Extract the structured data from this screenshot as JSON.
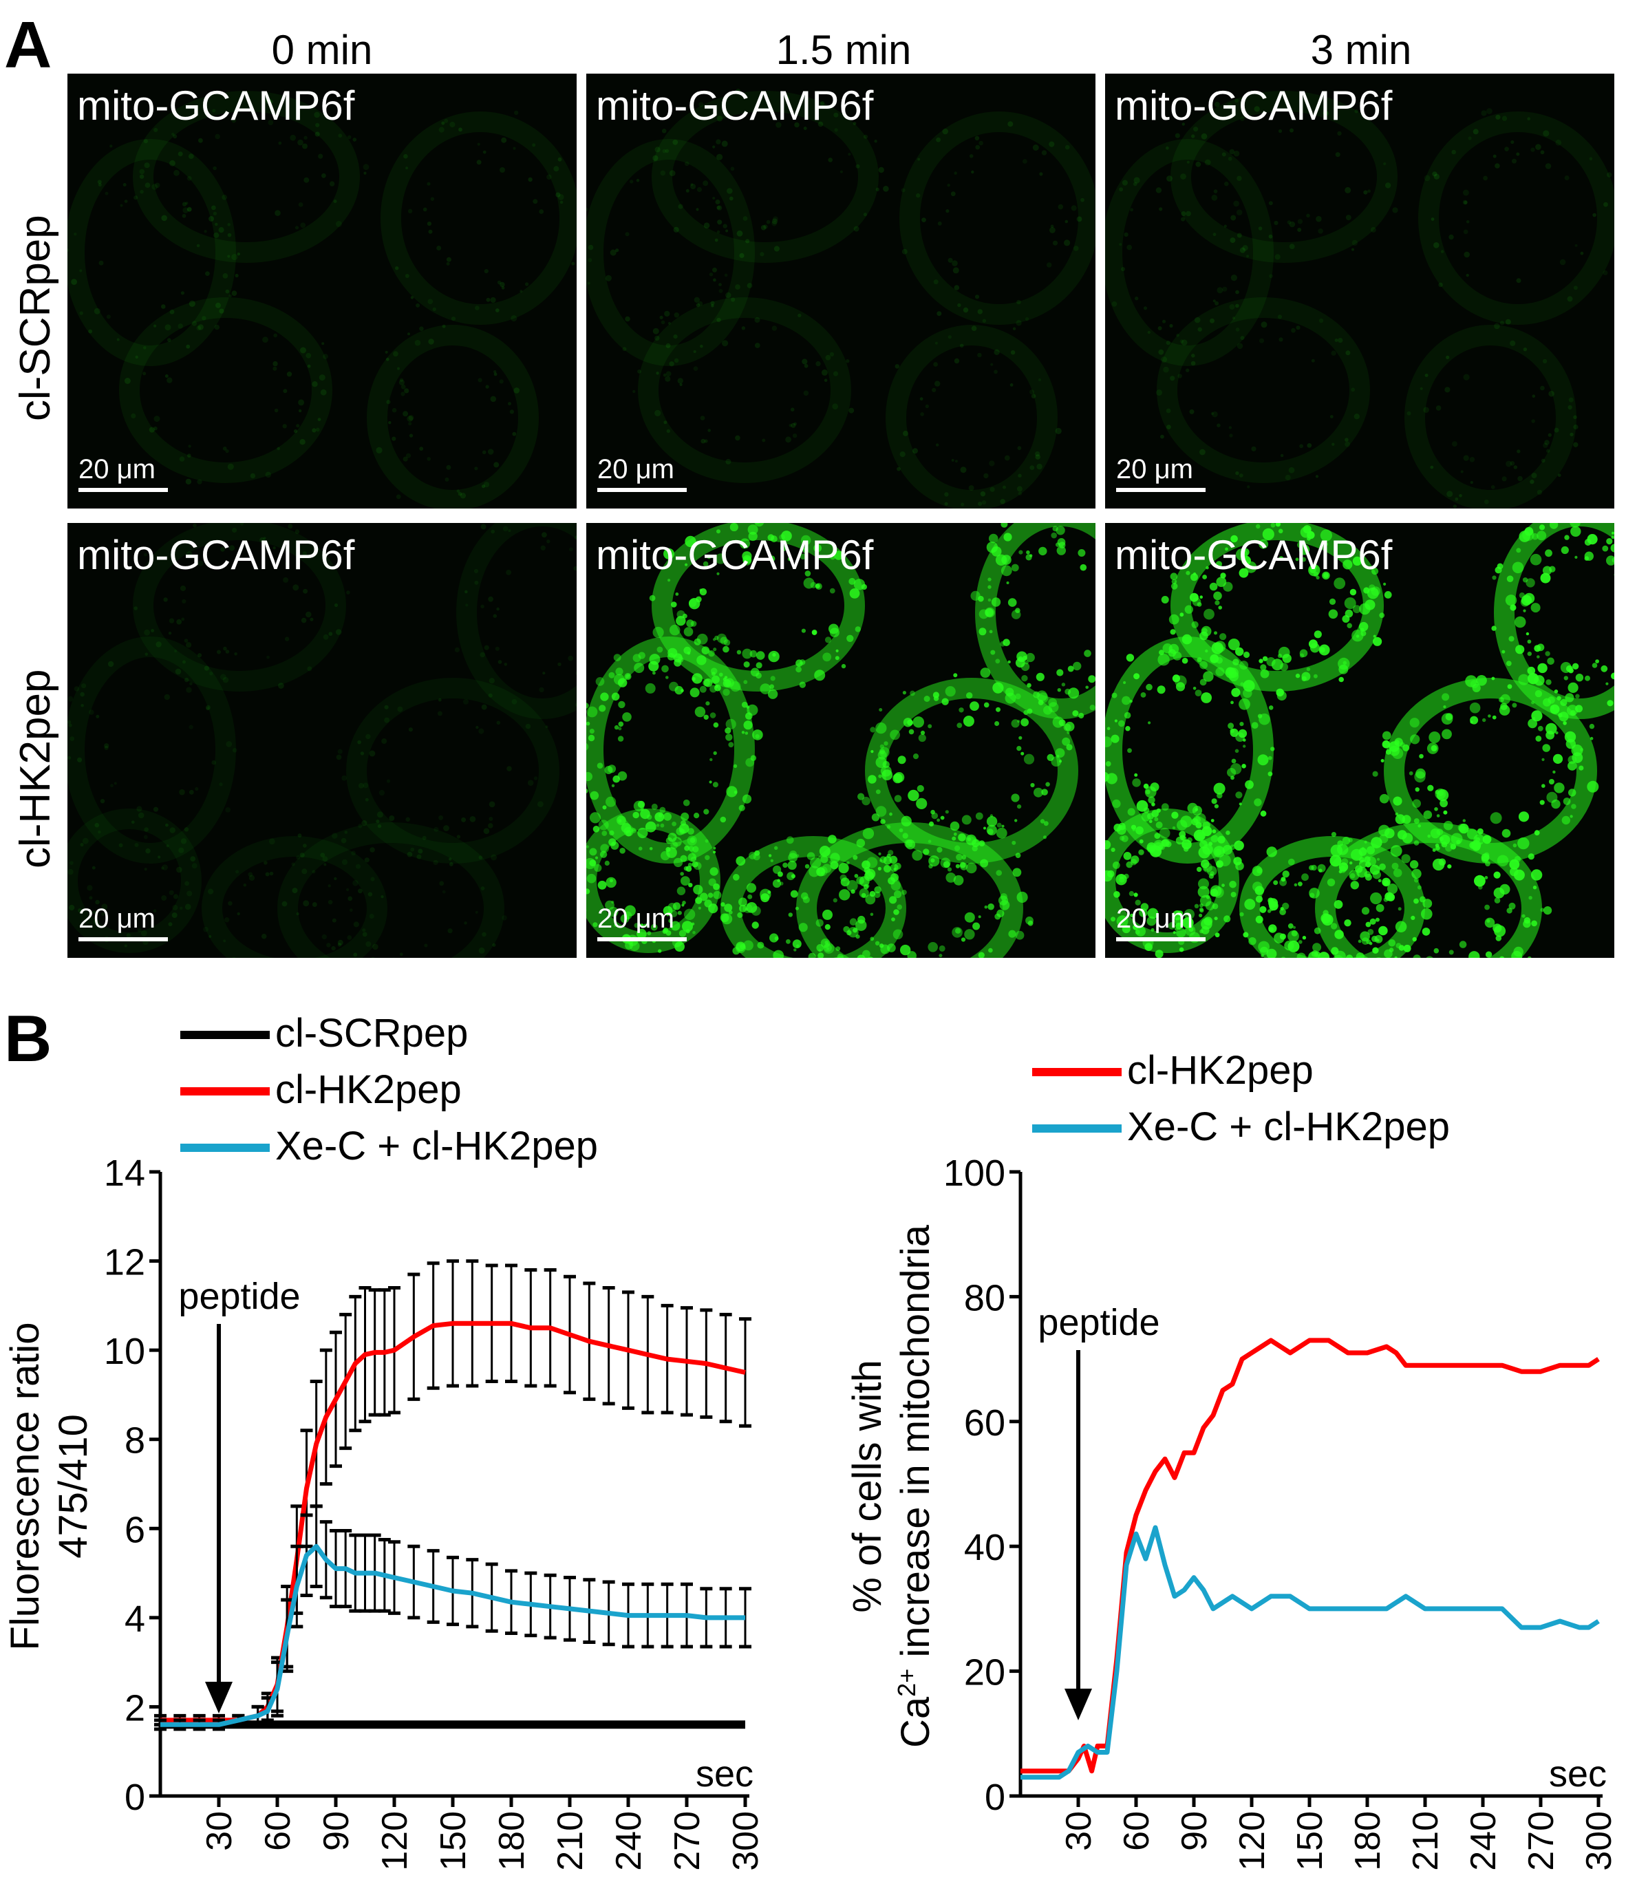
{
  "panels": {
    "a_label": "A",
    "b_label": "B"
  },
  "microscopy": {
    "columns": [
      "0 min",
      "1.5 min",
      "3 min"
    ],
    "rows": [
      "cl-SCRpep",
      "cl-HK2pep"
    ],
    "image_label": "mito-GCAMP6f",
    "scale_bar": "20 μm",
    "intensity": [
      [
        0.12,
        0.12,
        0.12
      ],
      [
        0.1,
        0.85,
        0.95
      ]
    ],
    "colors": {
      "signal": "#2bff1e",
      "background": "#020602"
    }
  },
  "chart_data": [
    {
      "type": "line",
      "xlabel": "sec",
      "ylabel": "Fluorescence ratio\n475/410",
      "ylabel_lines": [
        "Fluorescence ratio",
        "475/410"
      ],
      "xlim": [
        0,
        300
      ],
      "ylim": [
        0,
        14
      ],
      "x_ticks": [
        "30",
        "60",
        "90",
        "120",
        "150",
        "180",
        "210",
        "240",
        "270",
        "300"
      ],
      "y_ticks": [
        "0",
        "2",
        "4",
        "6",
        "8",
        "10",
        "12",
        "14"
      ],
      "annotation": {
        "text": "peptide",
        "x": 30
      },
      "legend": [
        "cl-SCRpep",
        "cl-HK2pep",
        "Xe-C + cl-HK2pep"
      ],
      "series": [
        {
          "name": "cl-SCRpep",
          "color": "#000000",
          "x": [
            0,
            300
          ],
          "values": [
            1.6,
            1.6
          ]
        },
        {
          "name": "cl-HK2pep",
          "color": "#ff0000",
          "x": [
            0,
            10,
            20,
            30,
            40,
            50,
            55,
            60,
            65,
            70,
            75,
            80,
            85,
            90,
            95,
            100,
            105,
            110,
            115,
            120,
            130,
            140,
            150,
            160,
            170,
            180,
            190,
            200,
            210,
            220,
            230,
            240,
            250,
            260,
            270,
            280,
            290,
            300
          ],
          "values": [
            1.7,
            1.7,
            1.7,
            1.7,
            1.7,
            1.8,
            2.0,
            2.5,
            3.8,
            5.3,
            6.9,
            7.9,
            8.5,
            8.9,
            9.3,
            9.7,
            9.9,
            9.95,
            9.95,
            10.0,
            10.3,
            10.55,
            10.6,
            10.6,
            10.6,
            10.6,
            10.5,
            10.5,
            10.35,
            10.2,
            10.1,
            10.0,
            9.9,
            9.8,
            9.75,
            9.7,
            9.6,
            9.5
          ],
          "error": [
            0.1,
            0.1,
            0.1,
            0.1,
            0.1,
            0.2,
            0.3,
            0.6,
            0.9,
            1.2,
            1.3,
            1.4,
            1.5,
            1.5,
            1.5,
            1.5,
            1.5,
            1.4,
            1.4,
            1.4,
            1.4,
            1.4,
            1.4,
            1.4,
            1.3,
            1.3,
            1.3,
            1.3,
            1.3,
            1.3,
            1.3,
            1.3,
            1.3,
            1.2,
            1.2,
            1.2,
            1.2,
            1.2
          ]
        },
        {
          "name": "Xe-C + cl-HK2pep",
          "color": "#1aa3cc",
          "x": [
            0,
            10,
            20,
            30,
            40,
            50,
            55,
            60,
            65,
            70,
            75,
            80,
            85,
            90,
            95,
            100,
            105,
            110,
            115,
            120,
            130,
            140,
            150,
            160,
            170,
            180,
            190,
            200,
            210,
            220,
            230,
            240,
            250,
            260,
            270,
            280,
            290,
            300
          ],
          "values": [
            1.6,
            1.6,
            1.6,
            1.6,
            1.7,
            1.8,
            1.9,
            2.4,
            3.6,
            4.7,
            5.4,
            5.6,
            5.3,
            5.1,
            5.1,
            5.0,
            5.0,
            5.0,
            4.95,
            4.9,
            4.8,
            4.7,
            4.6,
            4.55,
            4.45,
            4.35,
            4.3,
            4.25,
            4.2,
            4.15,
            4.1,
            4.05,
            4.05,
            4.05,
            4.05,
            4.0,
            4.0,
            4.0
          ],
          "error": [
            0.1,
            0.1,
            0.1,
            0.1,
            0.1,
            0.2,
            0.3,
            0.6,
            0.8,
            0.9,
            0.9,
            0.9,
            0.85,
            0.85,
            0.85,
            0.85,
            0.85,
            0.85,
            0.8,
            0.8,
            0.8,
            0.8,
            0.75,
            0.75,
            0.75,
            0.7,
            0.7,
            0.7,
            0.7,
            0.7,
            0.7,
            0.7,
            0.7,
            0.7,
            0.7,
            0.65,
            0.65,
            0.65
          ]
        }
      ]
    },
    {
      "type": "line",
      "xlabel": "sec",
      "ylabel": "% of cells with\nCa2+ increase in mitochondria",
      "ylabel_line1": "% of cells with",
      "ylabel_line2_prefix": "Ca",
      "ylabel_line2_sup": "2+",
      "ylabel_line2_suffix": " increase in mitochondria",
      "xlim": [
        0,
        300
      ],
      "ylim": [
        0,
        100
      ],
      "x_ticks": [
        "30",
        "60",
        "90",
        "120",
        "150",
        "180",
        "210",
        "240",
        "270",
        "300"
      ],
      "y_ticks": [
        "0",
        "20",
        "40",
        "60",
        "80",
        "100"
      ],
      "annotation": {
        "text": "peptide",
        "x": 30
      },
      "legend": [
        "cl-HK2pep",
        "Xe-C + cl-HK2pep"
      ],
      "series": [
        {
          "name": "cl-HK2pep",
          "color": "#ff0000",
          "x": [
            0,
            10,
            20,
            25,
            30,
            33,
            37,
            40,
            45,
            50,
            55,
            60,
            65,
            70,
            75,
            80,
            85,
            90,
            95,
            100,
            105,
            110,
            115,
            120,
            125,
            130,
            135,
            140,
            150,
            160,
            170,
            180,
            190,
            195,
            200,
            210,
            220,
            230,
            240,
            250,
            260,
            270,
            280,
            290,
            295,
            300
          ],
          "values": [
            4,
            4,
            4,
            4,
            6,
            8,
            4,
            8,
            8,
            22,
            39,
            45,
            49,
            52,
            54,
            51,
            55,
            55,
            59,
            61,
            65,
            66,
            70,
            71,
            72,
            73,
            72,
            71,
            73,
            73,
            71,
            71,
            72,
            71,
            69,
            69,
            69,
            69,
            69,
            69,
            68,
            68,
            69,
            69,
            69,
            70
          ]
        },
        {
          "name": "Xe-C + cl-HK2pep",
          "color": "#1aa3cc",
          "x": [
            0,
            10,
            20,
            25,
            30,
            35,
            40,
            45,
            50,
            55,
            60,
            65,
            70,
            75,
            80,
            85,
            90,
            95,
            100,
            110,
            120,
            130,
            140,
            150,
            160,
            170,
            180,
            190,
            200,
            210,
            220,
            230,
            240,
            250,
            260,
            270,
            280,
            290,
            295,
            300
          ],
          "values": [
            3,
            3,
            3,
            4,
            7,
            8,
            7,
            7,
            20,
            37,
            42,
            38,
            43,
            37,
            32,
            33,
            35,
            33,
            30,
            32,
            30,
            32,
            32,
            30,
            30,
            30,
            30,
            30,
            32,
            30,
            30,
            30,
            30,
            30,
            27,
            27,
            28,
            27,
            27,
            28
          ]
        }
      ]
    }
  ]
}
